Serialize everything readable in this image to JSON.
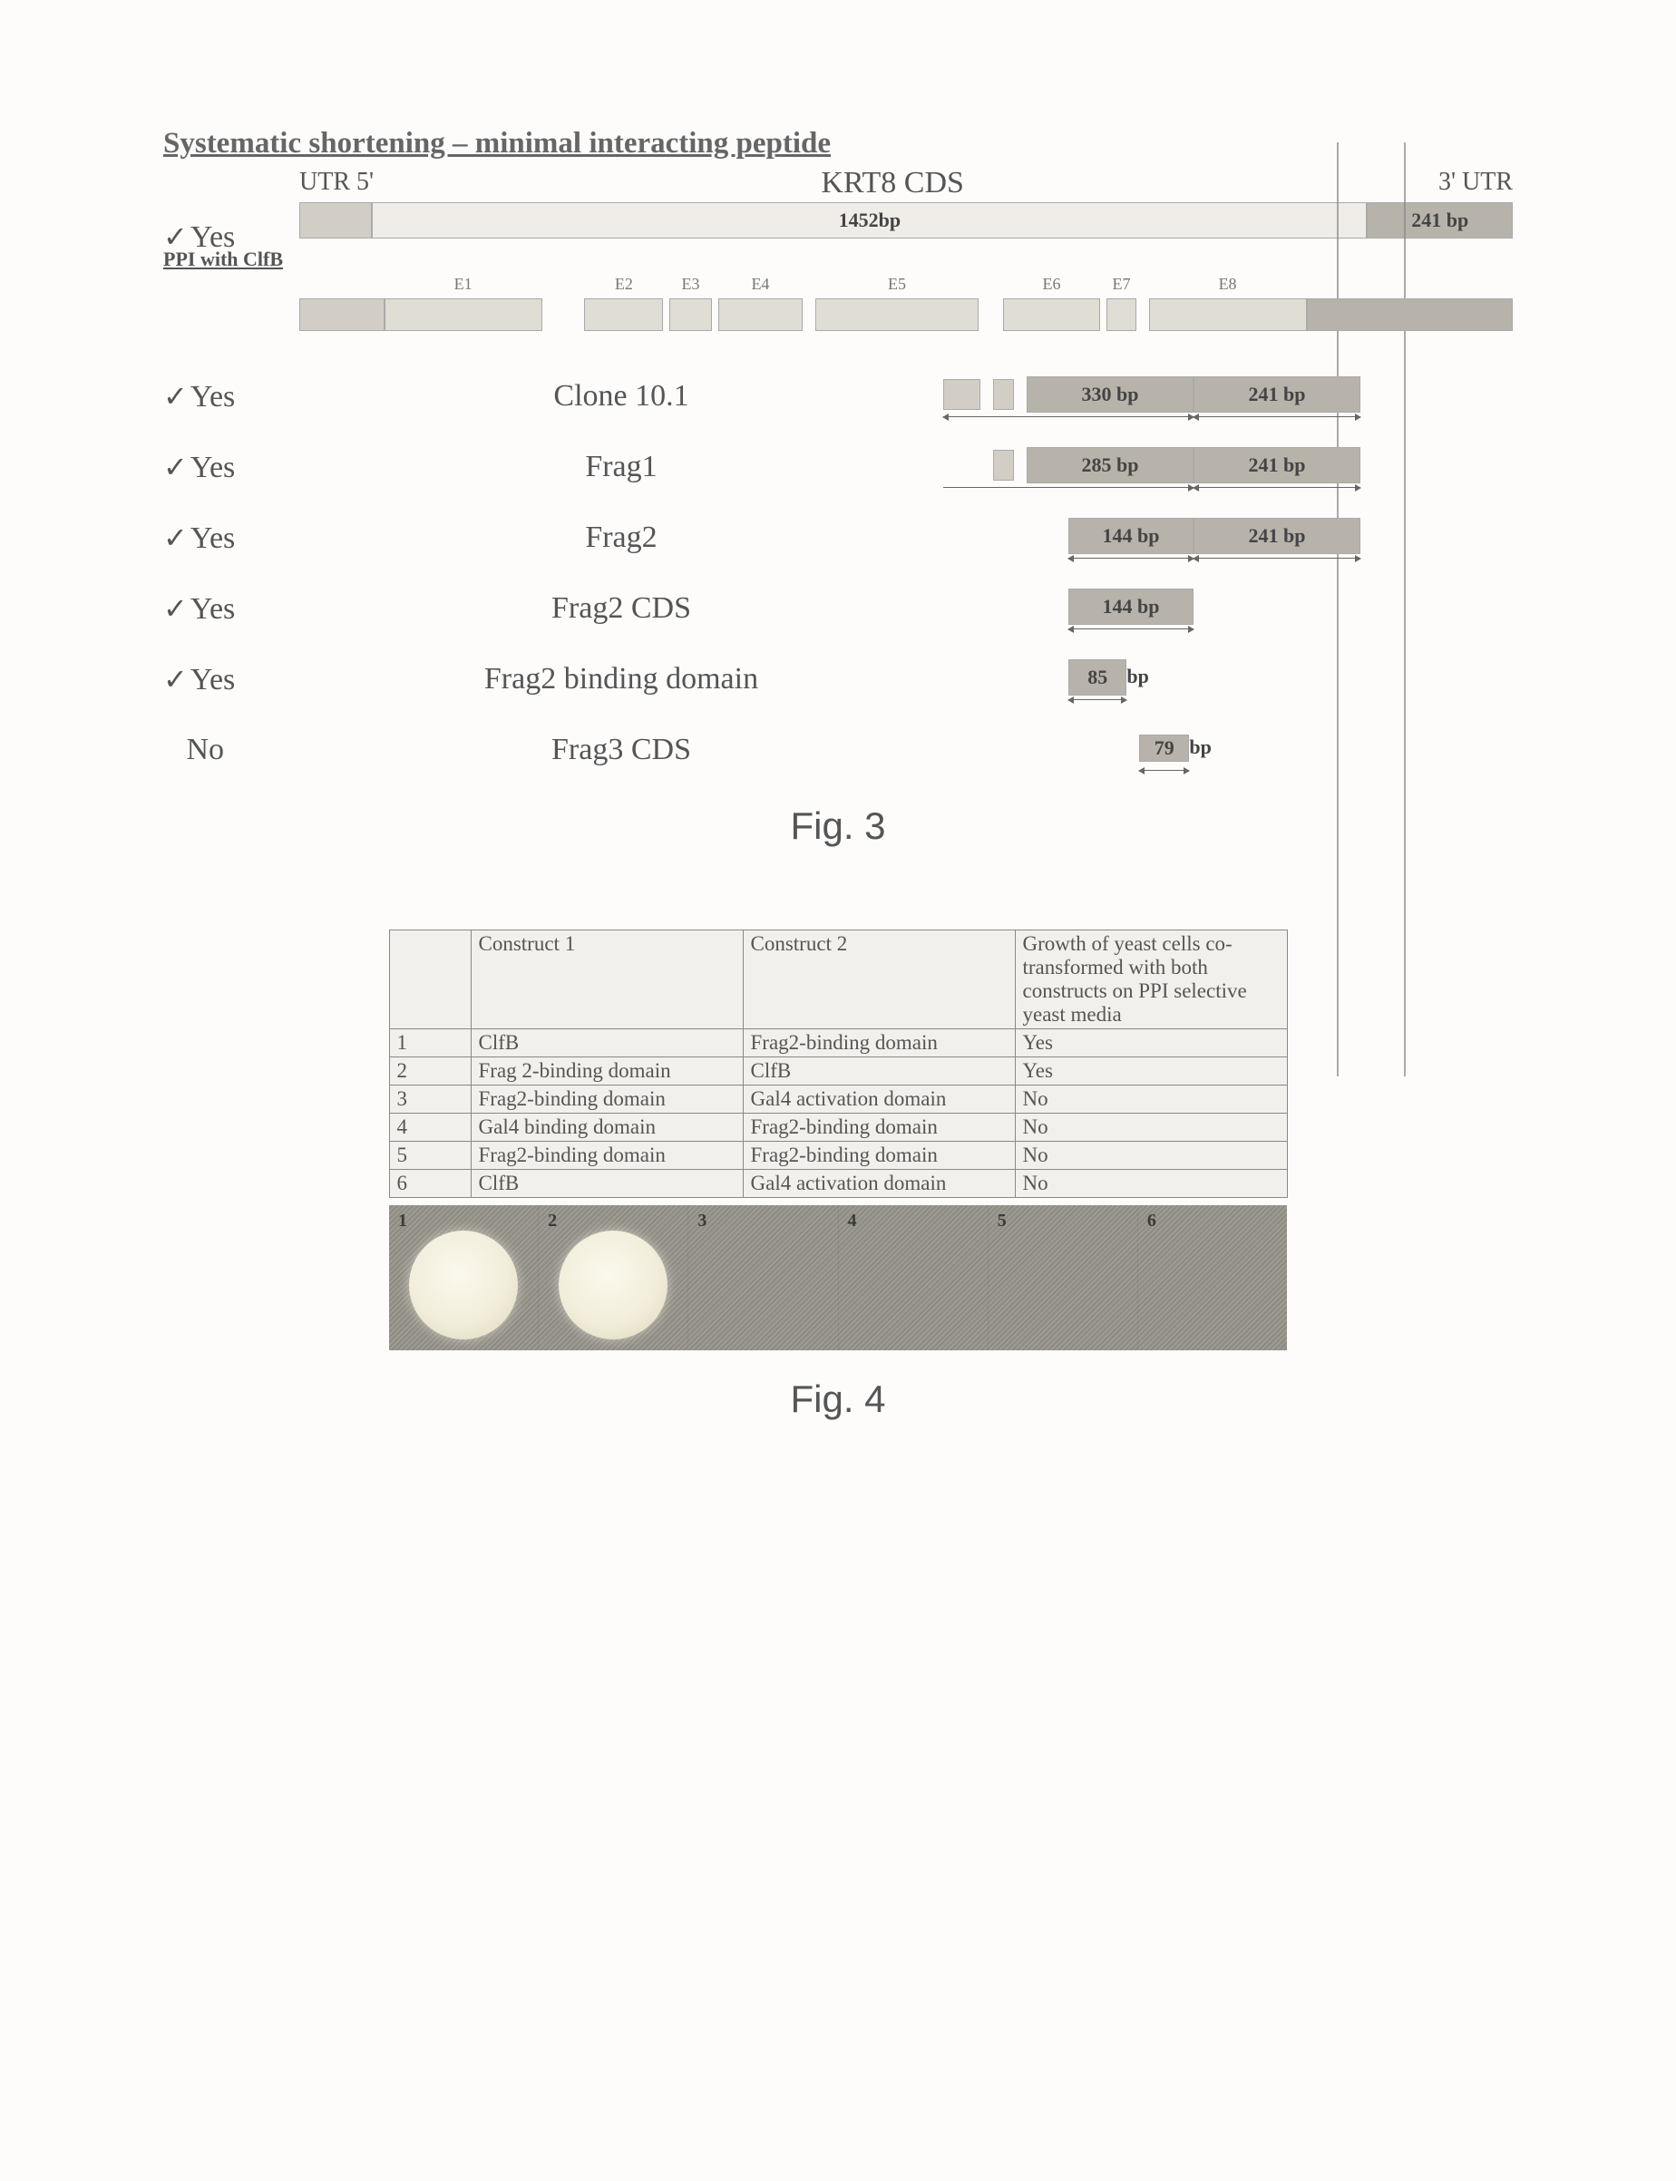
{
  "fig3": {
    "title": "Systematic shortening – minimal interacting peptide",
    "ppi_header": "PPI with ClfB",
    "utr5": "UTR  5'",
    "utr3": "3'   UTR",
    "krt8": "KRT8 CDS",
    "total_bp": "1452bp",
    "utr5_bp": "",
    "utr3_bp": "241 bp",
    "exons": [
      {
        "id": "E1",
        "x": 0.07,
        "w": 0.13
      },
      {
        "id": "E2",
        "x": 0.235,
        "w": 0.065
      },
      {
        "id": "E3",
        "x": 0.305,
        "w": 0.035
      },
      {
        "id": "E4",
        "x": 0.345,
        "w": 0.07
      },
      {
        "id": "E5",
        "x": 0.425,
        "w": 0.135
      },
      {
        "id": "E6",
        "x": 0.58,
        "w": 0.08
      },
      {
        "id": "E7",
        "x": 0.665,
        "w": 0.025
      },
      {
        "id": "E8",
        "x": 0.7,
        "w": 0.13
      }
    ],
    "exon_pre": {
      "x": 0.0,
      "w": 0.07
    },
    "exon_post": {
      "x": 0.83,
      "w": 0.17
    },
    "rows": [
      {
        "ppi": "Yes",
        "check": true,
        "label": "Clone 10.1",
        "segs": [
          {
            "x": 0.0,
            "w": 0.09,
            "cls": "lgray small"
          },
          {
            "x": 0.12,
            "w": 0.05,
            "cls": "lgray small"
          },
          {
            "x": 0.2,
            "w": 0.4,
            "cls": "dark",
            "text": "330 bp"
          },
          {
            "x": 0.6,
            "w": 0.4,
            "cls": "dark",
            "text": "241 bp"
          }
        ],
        "arrows": [
          {
            "x": 0.0,
            "w": 0.6,
            "cls": "dbl"
          },
          {
            "x": 0.6,
            "w": 0.4,
            "cls": "dbl"
          }
        ]
      },
      {
        "ppi": "Yes",
        "check": true,
        "label": "Frag1",
        "segs": [
          {
            "x": 0.12,
            "w": 0.05,
            "cls": "lgray small"
          },
          {
            "x": 0.2,
            "w": 0.4,
            "cls": "dark",
            "text": "285 bp"
          },
          {
            "x": 0.6,
            "w": 0.4,
            "cls": "dark",
            "text": "241 bp"
          }
        ],
        "arrows": [
          {
            "x": 0.0,
            "w": 0.6,
            "cls": "rt"
          },
          {
            "x": 0.6,
            "w": 0.4,
            "cls": "dbl"
          }
        ]
      },
      {
        "ppi": "Yes",
        "check": true,
        "label": "Frag2",
        "segs": [
          {
            "x": 0.3,
            "w": 0.3,
            "cls": "dark",
            "text": "144 bp"
          },
          {
            "x": 0.6,
            "w": 0.4,
            "cls": "dark",
            "text": "241 bp"
          }
        ],
        "arrows": [
          {
            "x": 0.3,
            "w": 0.3,
            "cls": "dbl"
          },
          {
            "x": 0.6,
            "w": 0.4,
            "cls": "dbl"
          }
        ]
      },
      {
        "ppi": "Yes",
        "check": true,
        "label": "Frag2 CDS",
        "segs": [
          {
            "x": 0.3,
            "w": 0.3,
            "cls": "dark",
            "text": "144 bp"
          }
        ],
        "arrows": [
          {
            "x": 0.3,
            "w": 0.3,
            "cls": "dbl"
          }
        ]
      },
      {
        "ppi": "Yes",
        "check": true,
        "label": "Frag2 binding domain",
        "segs": [
          {
            "x": 0.3,
            "w": 0.14,
            "cls": "dark",
            "text": "85"
          },
          {
            "x": 0.44,
            "w": 0.0,
            "bp_after": "bp"
          }
        ],
        "arrows": [
          {
            "x": 0.3,
            "w": 0.14,
            "cls": "dbl"
          }
        ]
      },
      {
        "ppi": "No",
        "check": false,
        "label": "Frag3 CDS",
        "segs": [
          {
            "x": 0.47,
            "w": 0.12,
            "cls": "dark tiny",
            "text": "79"
          },
          {
            "x": 0.59,
            "w": 0.0,
            "bp_after": "bp"
          }
        ],
        "arrows": [
          {
            "x": 0.47,
            "w": 0.12,
            "cls": "dbl"
          }
        ]
      }
    ],
    "caption": "Fig. 3"
  },
  "fig4": {
    "columns": [
      "",
      "Construct 1",
      "Construct 2",
      "Growth of yeast cells co-transformed with both constructs on PPI selective yeast media"
    ],
    "rows": [
      [
        "1",
        "ClfB",
        "Frag2-binding domain",
        "Yes"
      ],
      [
        "2",
        "Frag 2-binding domain",
        "ClfB",
        "Yes"
      ],
      [
        "3",
        "Frag2-binding domain",
        "Gal4 activation domain",
        "No"
      ],
      [
        "4",
        "Gal4 binding domain",
        "Frag2-binding domain",
        "No"
      ],
      [
        "5",
        "Frag2-binding domain",
        "Frag2-binding domain",
        "No"
      ],
      [
        "6",
        "ClfB",
        "Gal4 activation domain",
        "No"
      ]
    ],
    "plate_cells": [
      {
        "n": "1",
        "colony": true
      },
      {
        "n": "2",
        "colony": true
      },
      {
        "n": "3",
        "colony": false
      },
      {
        "n": "4",
        "colony": false
      },
      {
        "n": "5",
        "colony": false
      },
      {
        "n": "6",
        "colony": false
      }
    ],
    "caption": "Fig. 4"
  },
  "colors": {
    "bg": "#fdfcfb",
    "text": "#555555",
    "seg_dark": "#b7b3ab",
    "seg_light": "#f0ede9",
    "plate_bg": "#9e9b93",
    "colony": "#f2eedb"
  }
}
